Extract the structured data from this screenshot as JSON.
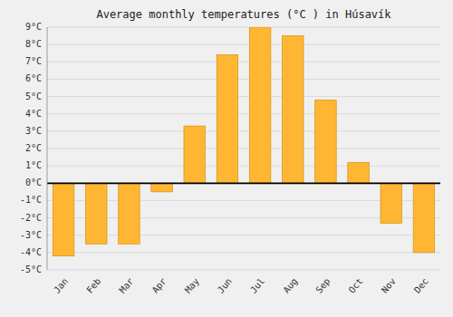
{
  "chart_data": {
    "type": "bar",
    "title": "Average monthly temperatures (°C ) in Húsavík",
    "categories": [
      "Jan",
      "Feb",
      "Mar",
      "Apr",
      "May",
      "Jun",
      "Jul",
      "Aug",
      "Sep",
      "Oct",
      "Nov",
      "Dec"
    ],
    "values": [
      -4.2,
      -3.5,
      -3.5,
      -0.5,
      3.3,
      7.4,
      9.0,
      8.5,
      4.8,
      1.2,
      -2.3,
      -4.0
    ],
    "color": "#FFB733",
    "ylim": [
      -5,
      9
    ],
    "yticks": [
      {
        "value": -5,
        "label": "-5°C"
      },
      {
        "value": -4,
        "label": "-4°C"
      },
      {
        "value": -3,
        "label": "-3°C"
      },
      {
        "value": -2,
        "label": "-2°C"
      },
      {
        "value": -1,
        "label": "-1°C"
      },
      {
        "value": 0,
        "label": "0°C"
      },
      {
        "value": 1,
        "label": "1°C"
      },
      {
        "value": 2,
        "label": "2°C"
      },
      {
        "value": 3,
        "label": "3°C"
      },
      {
        "value": 4,
        "label": "4°C"
      },
      {
        "value": 5,
        "label": "5°C"
      },
      {
        "value": 6,
        "label": "6°C"
      },
      {
        "value": 7,
        "label": "7°C"
      },
      {
        "value": 8,
        "label": "8°C"
      },
      {
        "value": 9,
        "label": "9°C"
      }
    ],
    "grid": true
  }
}
